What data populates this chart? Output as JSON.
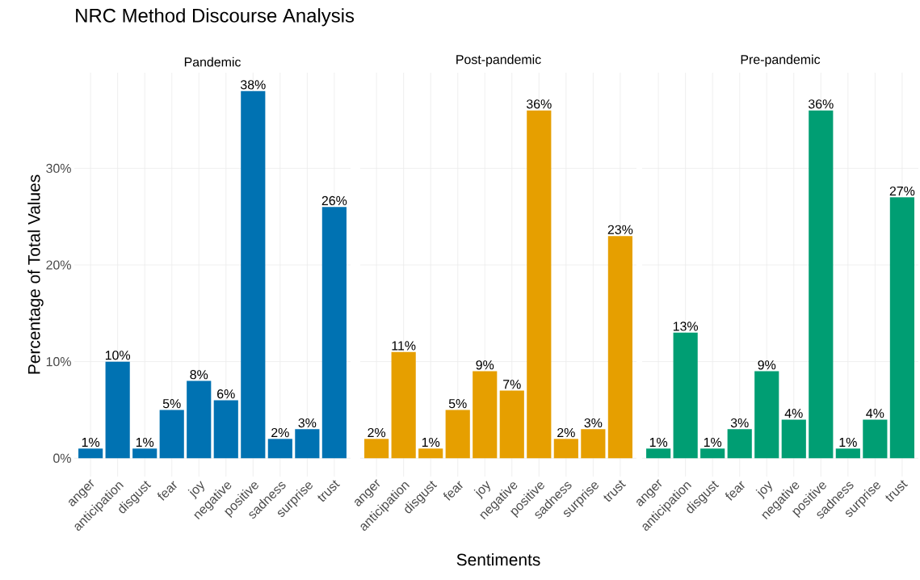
{
  "chart_data": [
    {
      "type": "bar",
      "title": "NRC Method Discourse Analysis",
      "subtitle": "Pandemic",
      "ylabel": "Percentage of Total Values",
      "categories": [
        "anger",
        "anticipation",
        "disgust",
        "fear",
        "joy",
        "negative",
        "positive",
        "sadness",
        "surprise",
        "trust"
      ],
      "values": [
        1,
        10,
        1,
        5,
        8,
        6,
        38,
        2,
        3,
        26
      ],
      "value_labels": [
        "1%",
        "10%",
        "1%",
        "5%",
        "8%",
        "6%",
        "38%",
        "2%",
        "3%",
        "26%"
      ],
      "color": "#0072b2",
      "ylim": [
        -1.9,
        39.9
      ],
      "yticks": [
        {
          "value": 0,
          "label": "0%"
        },
        {
          "value": 10,
          "label": "10%"
        },
        {
          "value": 20,
          "label": "20%"
        },
        {
          "value": 30,
          "label": "30%"
        }
      ],
      "grid": true
    },
    {
      "type": "bar",
      "subtitle": "Post-pandemic",
      "xlabel": "Sentiments",
      "categories": [
        "anger",
        "anticipation",
        "disgust",
        "fear",
        "joy",
        "negative",
        "positive",
        "sadness",
        "surprise",
        "trust"
      ],
      "values": [
        2,
        11,
        1,
        5,
        9,
        7,
        36,
        2,
        3,
        23
      ],
      "value_labels": [
        "2%",
        "11%",
        "1%",
        "5%",
        "9%",
        "7%",
        "36%",
        "2%",
        "3%",
        "23%"
      ],
      "color": "#e69f00",
      "ylim": [
        -1.9,
        39.9
      ],
      "yticks": [
        {
          "value": 0,
          "label": null
        },
        {
          "value": 10,
          "label": null
        },
        {
          "value": 20,
          "label": null
        },
        {
          "value": 30,
          "label": null
        }
      ],
      "grid": true,
      "tick_labels": "x"
    },
    {
      "type": "bar",
      "subtitle": "Pre-pandemic",
      "categories": [
        "anger",
        "anticipation",
        "disgust",
        "fear",
        "joy",
        "negative",
        "positive",
        "sadness",
        "surprise",
        "trust"
      ],
      "values": [
        1,
        13,
        1,
        3,
        9,
        4,
        36,
        1,
        4,
        27
      ],
      "value_labels": [
        "1%",
        "13%",
        "1%",
        "3%",
        "9%",
        "4%",
        "36%",
        "1%",
        "4%",
        "27%"
      ],
      "color": "#009e73",
      "ylim": [
        -1.9,
        39.9
      ],
      "yticks": [
        {
          "value": 0,
          "label": null
        },
        {
          "value": 10,
          "label": null
        },
        {
          "value": 20,
          "label": null
        },
        {
          "value": 30,
          "label": null
        }
      ],
      "grid": true,
      "tick_labels": "x"
    }
  ]
}
